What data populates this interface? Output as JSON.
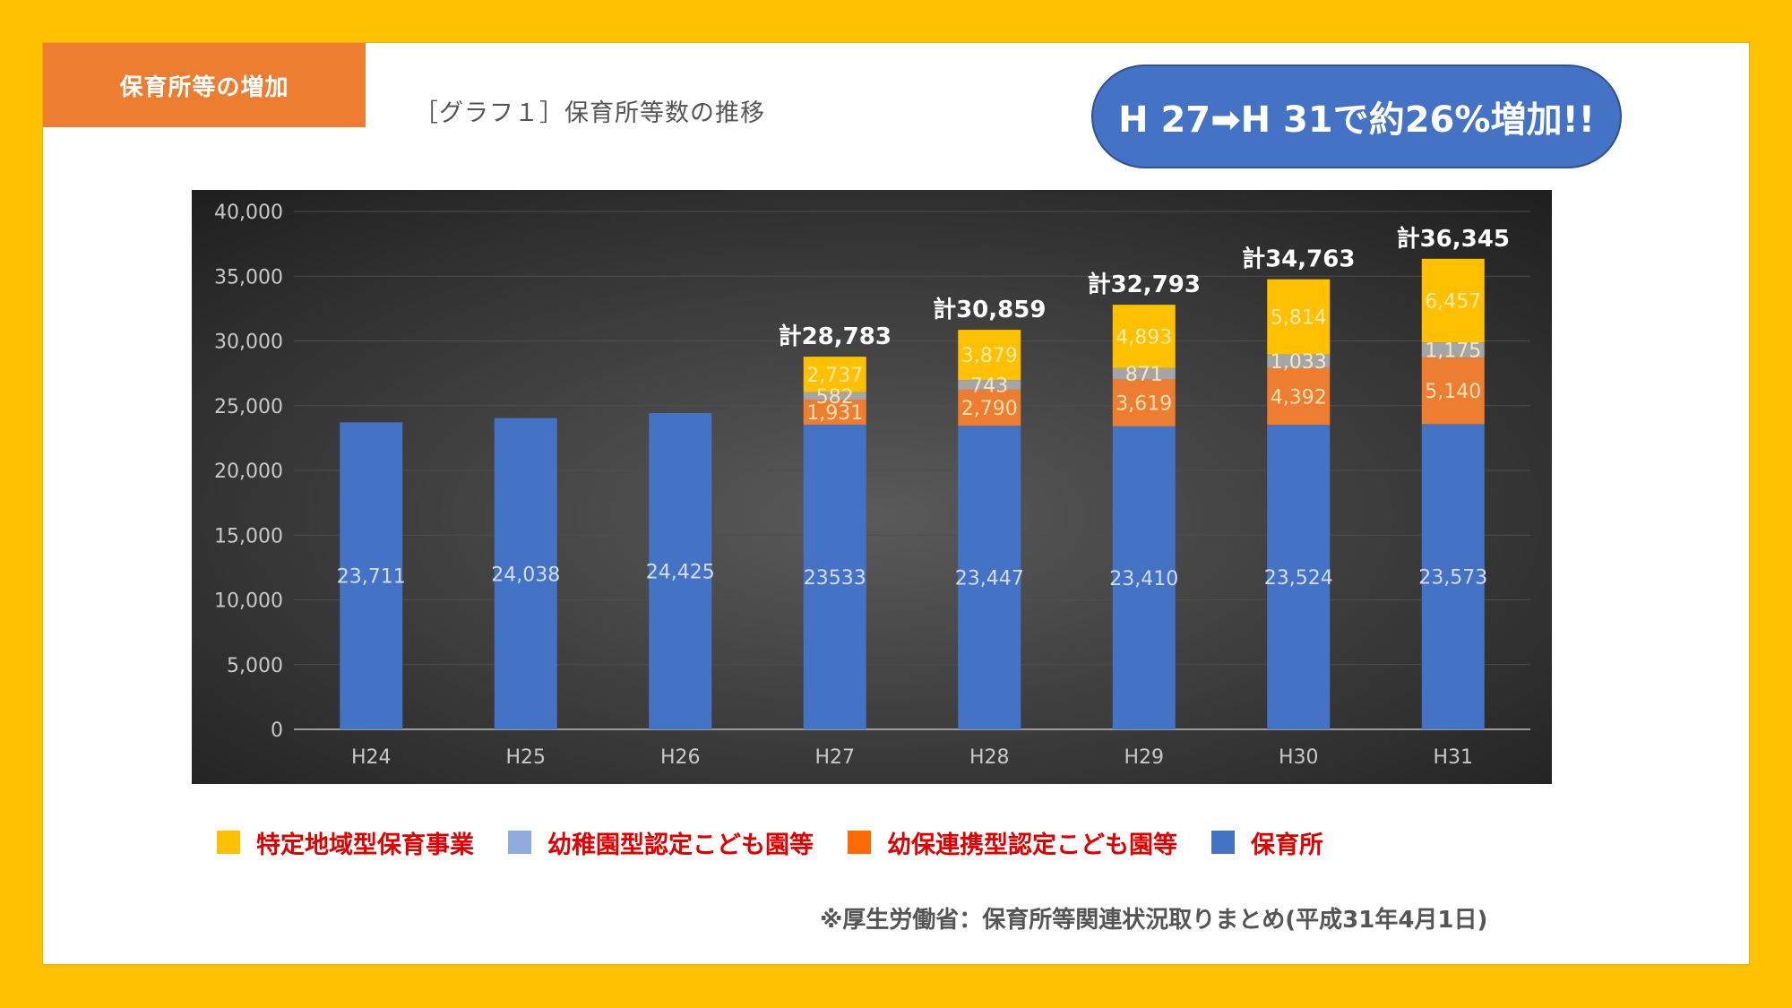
{
  "header": {
    "tag": "保育所等の増加",
    "graph_title": "［グラフ１］保育所等数の推移",
    "callout": "H 27➡H 31で約26%増加!!"
  },
  "source_note": "※厚生労働省：保育所等関連状況取りまとめ(平成31年4月1日)",
  "colors": {
    "frame": "#FFC000",
    "tag": "#ED7D31",
    "callout": "#4472C4",
    "legend_text": "#E00000"
  },
  "chart_data": {
    "type": "bar",
    "stacked": true,
    "categories": [
      "H24",
      "H25",
      "H26",
      "H27",
      "H28",
      "H29",
      "H30",
      "H31"
    ],
    "series": [
      {
        "name": "保育所",
        "color": "#4472C4",
        "values": [
          23711,
          24038,
          24425,
          23533,
          23447,
          23410,
          23524,
          23573
        ],
        "labels": [
          "23,711",
          "24,038",
          "24,425",
          "23533",
          "23,447",
          "23,410",
          "23,524",
          "23,573"
        ]
      },
      {
        "name": "幼保連携型認定こども園等",
        "color": "#ED7D31",
        "values": [
          null,
          null,
          null,
          1931,
          2790,
          3619,
          4392,
          5140
        ],
        "labels": [
          "",
          "",
          "",
          "1,931",
          "2,790",
          "3,619",
          "4,392",
          "5,140"
        ]
      },
      {
        "name": "幼稚園型認定こども園等",
        "color": "#A5A5A5",
        "values": [
          null,
          null,
          null,
          582,
          743,
          871,
          1033,
          1175
        ],
        "labels": [
          "",
          "",
          "",
          "582",
          "743",
          "871",
          "1,033",
          "1,175"
        ]
      },
      {
        "name": "特定地域型保育事業",
        "color": "#FFC000",
        "values": [
          null,
          null,
          null,
          2737,
          3879,
          4893,
          5814,
          6457
        ],
        "labels": [
          "",
          "",
          "",
          "2,737",
          "3,879",
          "4,893",
          "5,814",
          "6,457"
        ]
      }
    ],
    "totals": [
      "",
      "",
      "",
      "計28,783",
      "計30,859",
      "計32,793",
      "計34,763",
      "計36,345"
    ],
    "y_ticks": [
      "0",
      "5,000",
      "10,000",
      "15,000",
      "20,000",
      "25,000",
      "30,000",
      "35,000",
      "40,000"
    ],
    "ylim": [
      0,
      40000
    ],
    "grid": true,
    "legend": [
      {
        "label": "特定地域型保育事業",
        "color": "#FFC000"
      },
      {
        "label": "幼稚園型認定こども園等",
        "color": "#8FAADC"
      },
      {
        "label": "幼保連携型認定こども園等",
        "color": "#FF6A00"
      },
      {
        "label": "保育所",
        "color": "#4472C4"
      }
    ]
  }
}
